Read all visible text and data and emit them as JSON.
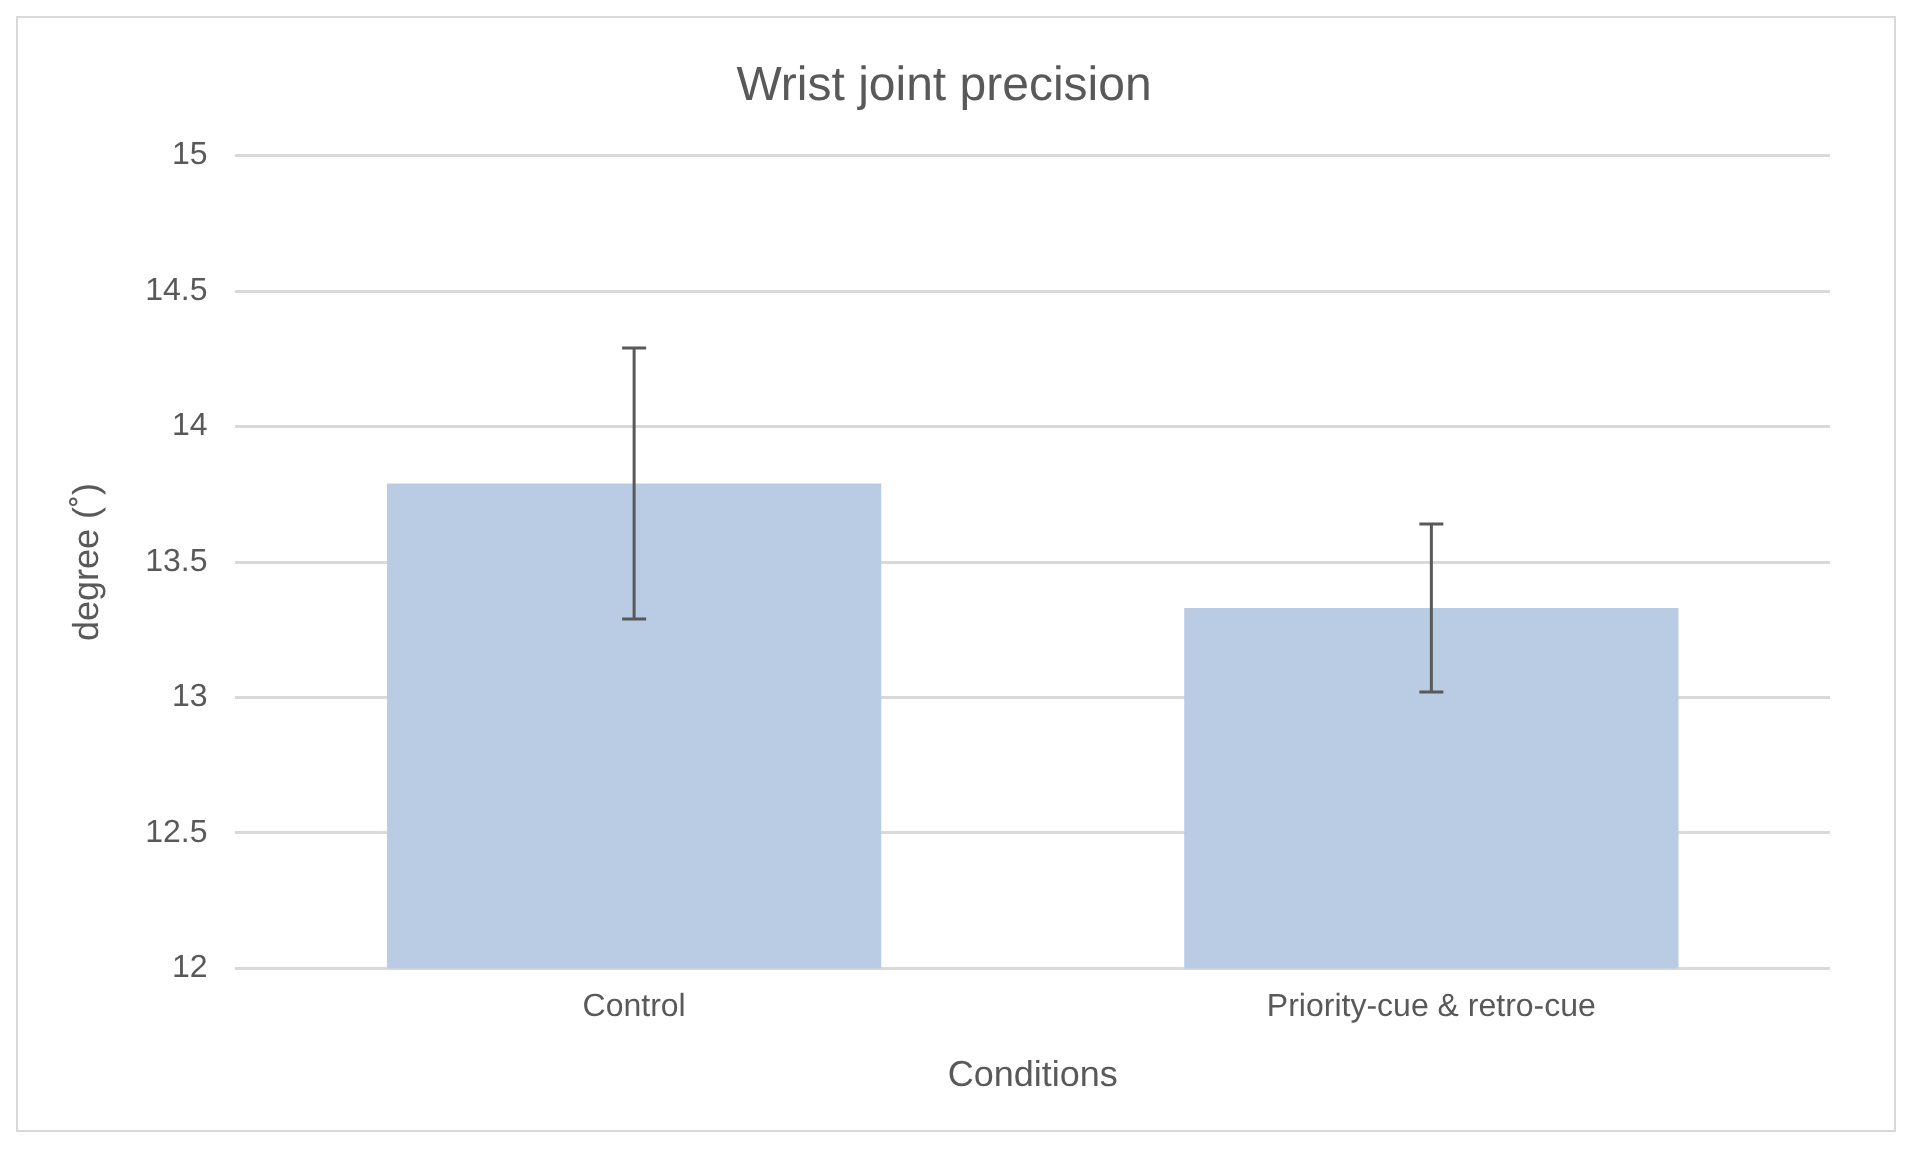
{
  "chart_data": {
    "type": "bar",
    "title": "Wrist joint precision",
    "xlabel": "Conditions",
    "ylabel": "degree (˚)",
    "categories": [
      "Control",
      "Priority-cue & retro-cue"
    ],
    "values": [
      13.79,
      13.33
    ],
    "color": "#b9cce4",
    "errors": [
      0.5,
      0.31
    ],
    "ylim": [
      12,
      15
    ],
    "yticks": [
      12,
      12.5,
      13,
      13.5,
      14,
      14.5,
      15
    ],
    "grid": "y",
    "legend": false
  }
}
